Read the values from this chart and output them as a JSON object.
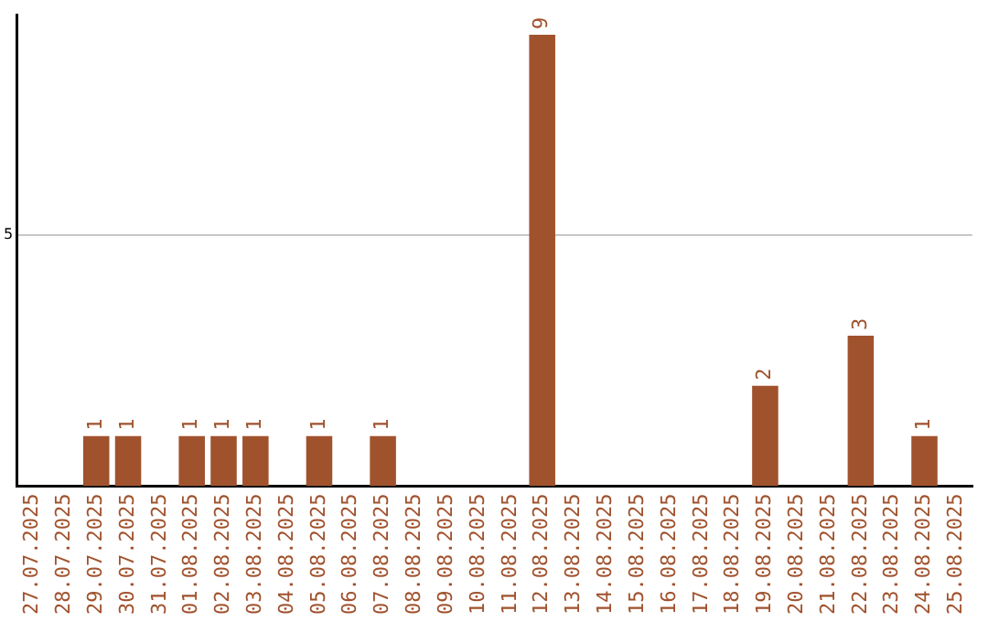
{
  "chart_data": {
    "type": "bar",
    "categories": [
      "27.07.2025",
      "28.07.2025",
      "29.07.2025",
      "30.07.2025",
      "31.07.2025",
      "01.08.2025",
      "02.08.2025",
      "03.08.2025",
      "04.08.2025",
      "05.08.2025",
      "06.08.2025",
      "07.08.2025",
      "08.08.2025",
      "09.08.2025",
      "10.08.2025",
      "11.08.2025",
      "12.08.2025",
      "13.08.2025",
      "14.08.2025",
      "15.08.2025",
      "16.08.2025",
      "17.08.2025",
      "18.08.2025",
      "19.08.2025",
      "20.08.2025",
      "21.08.2025",
      "22.08.2025",
      "23.08.2025",
      "24.08.2025",
      "25.08.2025"
    ],
    "values": [
      0,
      0,
      1,
      1,
      0,
      1,
      1,
      1,
      0,
      1,
      0,
      1,
      0,
      0,
      0,
      0,
      9,
      0,
      0,
      0,
      0,
      0,
      0,
      2,
      0,
      0,
      3,
      0,
      1,
      0
    ],
    "value_labels": [
      null,
      null,
      "1",
      "1",
      null,
      "1",
      "1",
      "1",
      null,
      "1",
      null,
      "1",
      null,
      null,
      null,
      null,
      "9",
      null,
      null,
      null,
      null,
      null,
      null,
      "2",
      null,
      null,
      "3",
      null,
      "1",
      null
    ],
    "color": "#a0522d",
    "ylim": [
      0,
      9.4
    ],
    "yticks": [
      5
    ],
    "grid": "y",
    "legend": false
  }
}
